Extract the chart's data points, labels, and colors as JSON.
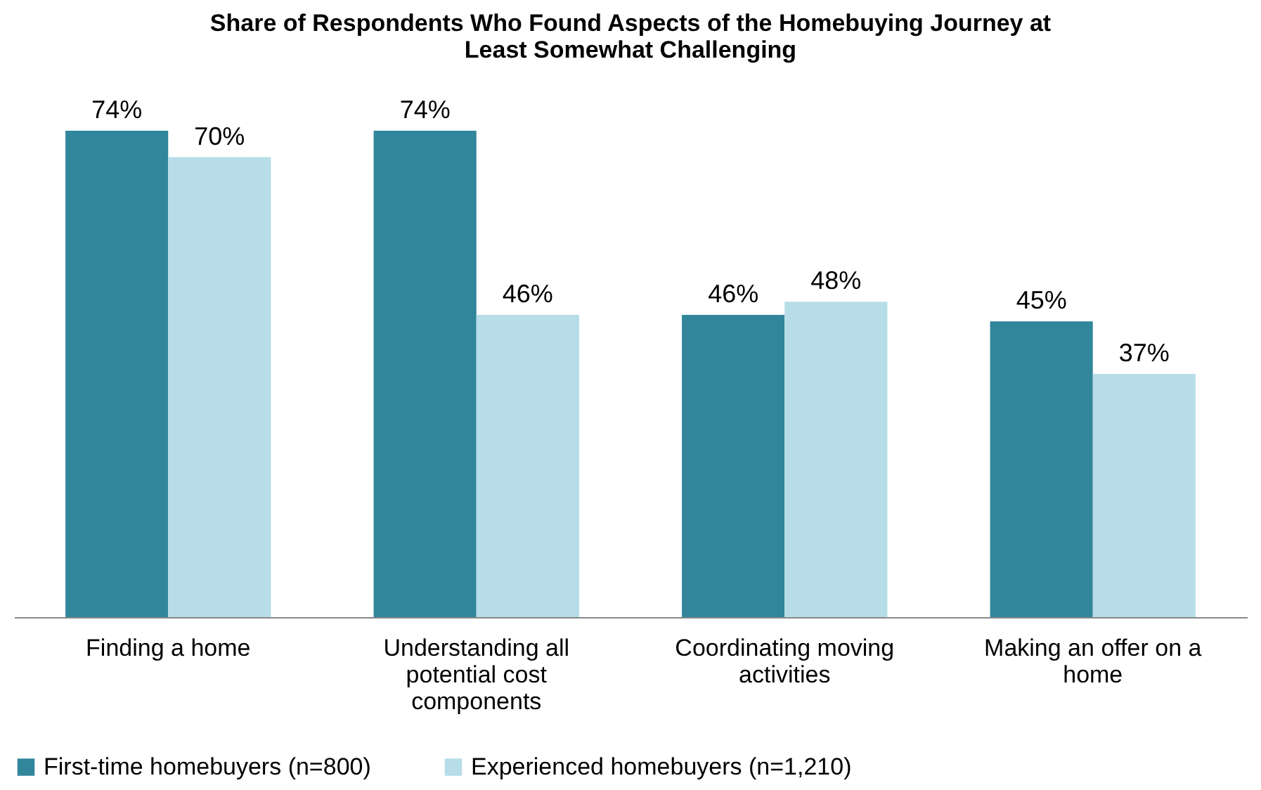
{
  "chart_data": {
    "type": "bar",
    "title": "Share of Respondents Who Found Aspects of the Homebuying Journey at Least Somewhat Challenging",
    "categories": [
      "Finding a home",
      "Understanding all potential cost components",
      "Coordinating moving activities",
      "Making an offer on a home"
    ],
    "series": [
      {
        "name": "First-time homebuyers (n=800)",
        "color": "#31869b",
        "values": [
          74,
          74,
          46,
          45
        ],
        "value_labels": [
          "74%",
          "74%",
          "46%",
          "45%"
        ]
      },
      {
        "name": "Experienced homebuyers (n=1,210)",
        "color": "#b7dde8",
        "values": [
          70,
          46,
          48,
          37
        ],
        "value_labels": [
          "70%",
          "46%",
          "48%",
          "37%"
        ]
      }
    ],
    "legend": "bottom",
    "grid": false,
    "tick_labels": "x"
  }
}
